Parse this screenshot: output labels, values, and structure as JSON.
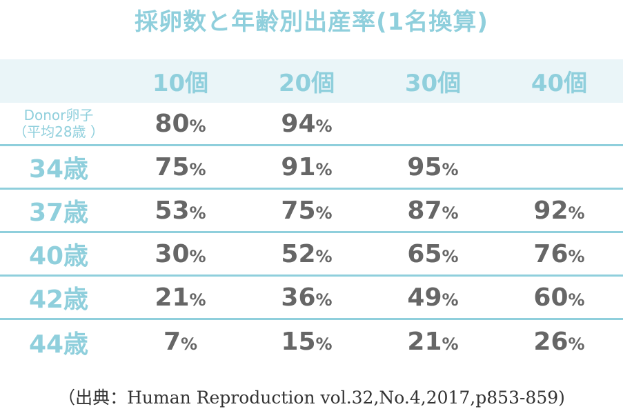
{
  "title": "採卵数と年齢別出産率(1名換算)",
  "source": "（出典：Human Reproduction vol.32,No.4,2017,p853-859)",
  "percent_sign": "%",
  "chart_data": {
    "type": "table",
    "title": "採卵数と年齢別出産率(1名換算)",
    "columns": [
      "10個",
      "20個",
      "30個",
      "40個"
    ],
    "rows": [
      {
        "label_line1": "Donor卵子",
        "label_line2": "（平均28歳 ）",
        "values": [
          "80",
          "94",
          "",
          ""
        ]
      },
      {
        "label": "34歳",
        "values": [
          "75",
          "91",
          "95",
          ""
        ]
      },
      {
        "label": "37歳",
        "values": [
          "53",
          "75",
          "87",
          "92"
        ]
      },
      {
        "label": "40歳",
        "values": [
          "30",
          "52",
          "65",
          "76"
        ]
      },
      {
        "label": "42歳",
        "values": [
          "21",
          "36",
          "49",
          "60"
        ]
      },
      {
        "label": "44歳",
        "values": [
          "7",
          "15",
          "21",
          "26"
        ]
      }
    ]
  }
}
